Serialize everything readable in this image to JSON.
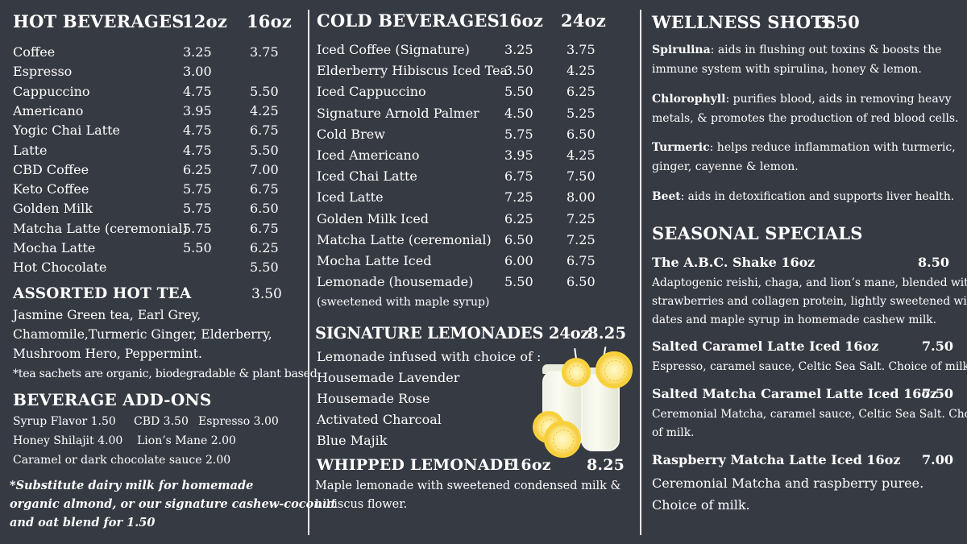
{
  "hot_beverages": {
    "title": "HOT BEVERAGES",
    "size1": "12oz",
    "size2": "16oz",
    "items": [
      {
        "name": "Coffee",
        "p1": "3.25",
        "p2": "3.75"
      },
      {
        "name": "Espresso",
        "p1": "3.00",
        "p2": ""
      },
      {
        "name": "Cappuccino",
        "p1": "4.75",
        "p2": "5.50"
      },
      {
        "name": "Americano",
        "p1": "3.95",
        "p2": "4.25"
      },
      {
        "name": "Yogic Chai Latte",
        "p1": "4.75",
        "p2": "6.75"
      },
      {
        "name": "Latte",
        "p1": "4.75",
        "p2": "5.50"
      },
      {
        "name": "CBD Coffee",
        "p1": "6.25",
        "p2": "7.00"
      },
      {
        "name": "Keto Coffee",
        "p1": "5.75",
        "p2": "6.75"
      },
      {
        "name": "Golden Milk",
        "p1": "5.75",
        "p2": "6.50"
      },
      {
        "name": "Matcha Latte (ceremonial)",
        "p1": "5.75",
        "p2": "6.75"
      },
      {
        "name": "Mocha Latte",
        "p1": "5.50",
        "p2": "6.25"
      },
      {
        "name": "Hot Chocolate",
        "p1": "",
        "p2": "5.50"
      }
    ]
  },
  "hot_tea": {
    "title": "ASSORTED HOT TEA",
    "price": "3.50",
    "lines": [
      "Jasmine Green tea, Earl Grey,",
      "Chamomile,Turmeric Ginger,  Elderberry,",
      "Mushroom Hero, Peppermint."
    ],
    "note": "*tea sachets are organic, biodegradable & plant based"
  },
  "addons": {
    "title": "BEVERAGE ADD-ONS",
    "row1": [
      "Syrup Flavor   1.50",
      "CBD  3.50",
      "Espresso 3.00"
    ],
    "row2": [
      "Honey Shilajit  4.00",
      "Lion’s Mane  2.00"
    ],
    "row3": "Caramel or dark chocolate sauce   2.00"
  },
  "substitute_note": [
    "*Substitute dairy milk for homemade",
    "organic almond, or our signature cashew-coconut",
    "and oat blend for 1.50"
  ],
  "cold_beverages": {
    "title": "COLD BEVERAGES",
    "size1": "16oz",
    "size2": "24oz",
    "items": [
      {
        "name": "Iced Coffee (Signature)",
        "p1": "3.25",
        "p2": "3.75"
      },
      {
        "name": "Elderberry Hibiscus Iced Tea",
        "p1": "3.50",
        "p2": "4.25"
      },
      {
        "name": "Iced Cappuccino",
        "p1": "5.50",
        "p2": "6.25"
      },
      {
        "name": "Signature Arnold Palmer",
        "p1": "4.50",
        "p2": "5.25"
      },
      {
        "name": "Cold Brew",
        "p1": "5.75",
        "p2": "6.50"
      },
      {
        "name": "Iced Americano",
        "p1": "3.95",
        "p2": "4.25"
      },
      {
        "name": "Iced Chai Latte",
        "p1": "6.75",
        "p2": "7.50"
      },
      {
        "name": "Iced Latte",
        "p1": "7.25",
        "p2": "8.00"
      },
      {
        "name": "Golden Milk Iced",
        "p1": "6.25",
        "p2": "7.25"
      },
      {
        "name": "Matcha Latte (ceremonial)",
        "p1": "6.50",
        "p2": "7.25"
      },
      {
        "name": "Mocha Latte Iced",
        "p1": "6.00",
        "p2": "6.75"
      },
      {
        "name": "Lemonade (housemade)",
        "p1": "5.50",
        "p2": "6.50"
      }
    ],
    "lemonade_note": "(sweetened with maple syrup)"
  },
  "signature_lemonades": {
    "title": "SIGNATURE LEMONADES 24oz",
    "price": "8.25",
    "intro": "Lemonade infused with choice of :",
    "options": [
      "Housemade Lavender",
      "Housemade Rose",
      "Activated Charcoal",
      "Blue Majik"
    ]
  },
  "whipped_lemonade": {
    "title": "WHIPPED LEMONADE",
    "size": "16oz",
    "price": "8.25",
    "desc": [
      "Maple lemonade with sweetened condensed milk &",
      "hibiscus flower."
    ]
  },
  "wellness": {
    "title": "WELLNESS SHOTS",
    "price": "3.50",
    "shots": [
      {
        "name": "Spirulina",
        "desc_l1": ": aids in flushing out toxins & boosts the",
        "desc_l2": "immune system with spirulina, honey & lemon."
      },
      {
        "name": "Chlorophyll",
        "desc_l1": ": purifies blood, aids in removing heavy",
        "desc_l2": "metals, & promotes the production of red blood cells."
      },
      {
        "name": "Turmeric",
        "desc_l1": ": helps reduce inflammation with turmeric,",
        "desc_l2": "ginger, cayenne & lemon."
      },
      {
        "name": "Beet",
        "desc_l1": ": aids in detoxification and supports liver health.",
        "desc_l2": ""
      }
    ]
  },
  "seasonal": {
    "title": "SEASONAL SPECIALS",
    "items": [
      {
        "name": "The A.B.C. Shake 16oz",
        "price": "8.50",
        "desc": [
          "Adaptogenic reishi, chaga, and lion’s mane, blended with",
          "strawberries and collagen protein, lightly sweetened with",
          "dates and maple syrup in homemade cashew milk."
        ]
      },
      {
        "name": "Salted Caramel Latte Iced 16oz",
        "price": "7.50",
        "desc": [
          "Espresso, caramel sauce, Celtic Sea Salt. Choice of milk."
        ]
      },
      {
        "name": "Salted Matcha Caramel Latte Iced 16oz",
        "price": "7.50",
        "desc": [
          "Ceremonial Matcha, caramel sauce, Celtic Sea Salt. Choice",
          "of milk."
        ]
      },
      {
        "name": "Raspberry Matcha Latte Iced 16oz",
        "price": "7.00",
        "desc": [
          "Ceremonial Matcha and raspberry puree.",
          "Choice of milk."
        ]
      }
    ]
  },
  "illustration": {
    "icon": "lemonade-jar-with-lemons-icon"
  }
}
